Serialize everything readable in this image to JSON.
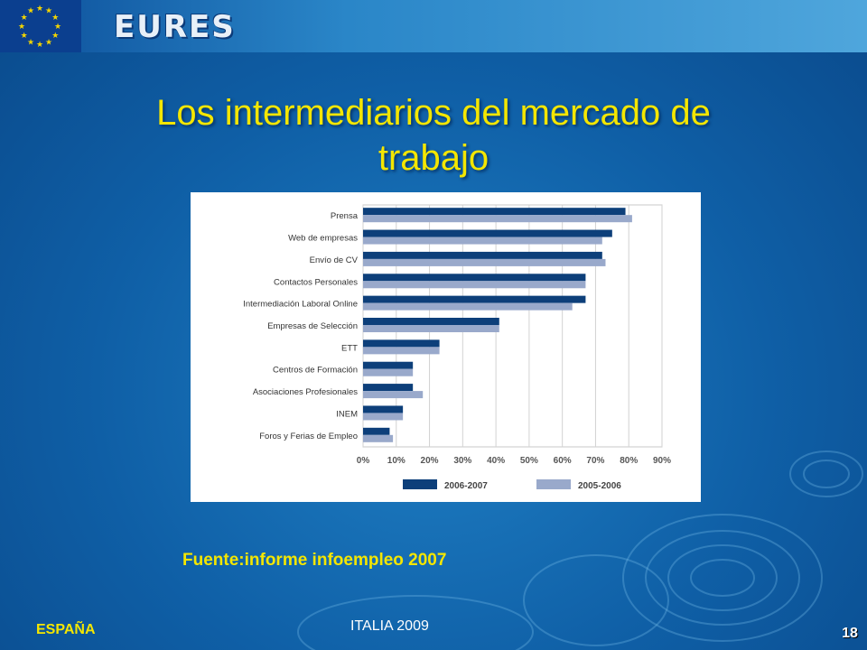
{
  "header": {
    "logo_text": "EURES",
    "flag_icon": "eu-stars-icon"
  },
  "slide": {
    "title_line1": "Los intermediarios del mercado de",
    "title_line2": "trabajo",
    "source": "Fuente:informe infoempleo 2007",
    "footer_left": "ESPAÑA",
    "footer_center": "ITALIA 2009",
    "page_number": "18"
  },
  "chart_data": {
    "type": "bar",
    "orientation": "horizontal",
    "categories": [
      "Prensa",
      "Web de empresas",
      "Envío de CV",
      "Contactos Personales",
      "Intermediación Laboral Online",
      "Empresas de Selección",
      "ETT",
      "Centros de Formación",
      "Asociaciones Profesionales",
      "INEM",
      "Foros y Ferias de Empleo"
    ],
    "series": [
      {
        "name": "2006-2007",
        "color": "#0d3f7a",
        "values": [
          79,
          75,
          72,
          67,
          67,
          41,
          23,
          15,
          15,
          12,
          8
        ]
      },
      {
        "name": "2005-2006",
        "color": "#99a9cb",
        "values": [
          81,
          72,
          73,
          67,
          63,
          41,
          23,
          15,
          18,
          12,
          9
        ]
      }
    ],
    "x_ticks": [
      "0%",
      "10%",
      "20%",
      "30%",
      "40%",
      "50%",
      "60%",
      "70%",
      "80%",
      "90%"
    ],
    "xlim": [
      0,
      90
    ],
    "grid": true,
    "legend_position": "bottom"
  }
}
